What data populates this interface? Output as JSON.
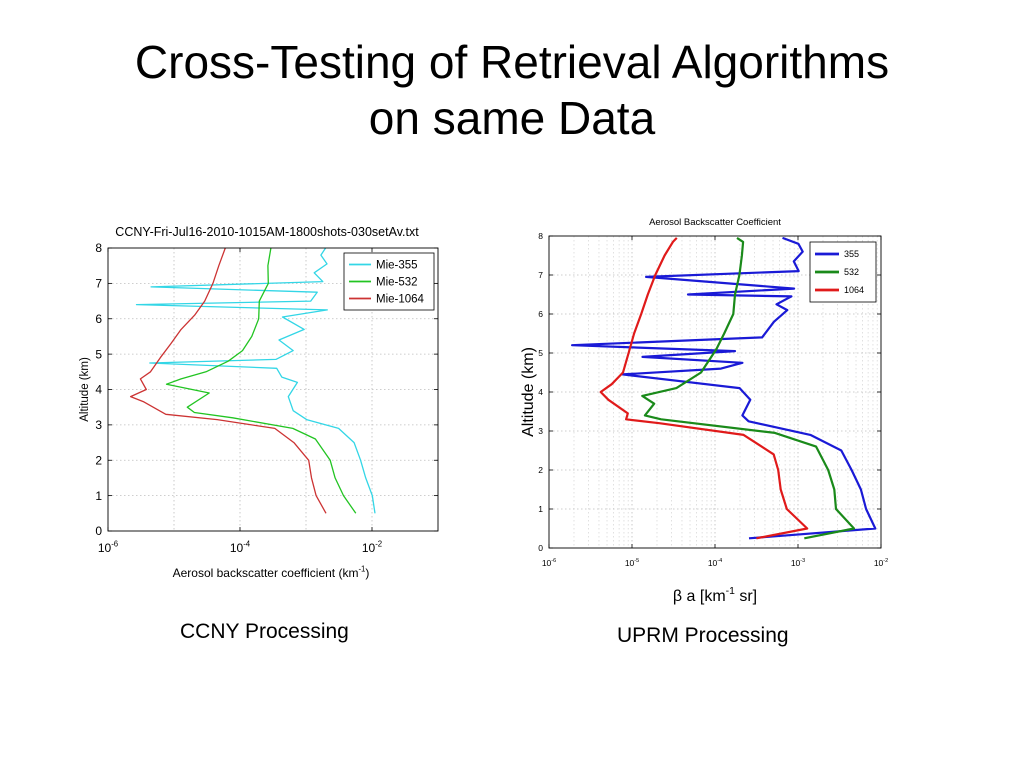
{
  "slide": {
    "title_line1": "Cross-Testing of Retrieval Algorithms",
    "title_line2": "on same  Data"
  },
  "captions": {
    "left": "CCNY Processing",
    "right": "UPRM Processing"
  },
  "chart_data": [
    {
      "id": "ccny",
      "type": "line",
      "title": "CCNY-Fri-Jul16-2010-1015AM-1800shots-030setAv.txt",
      "xlabel": "Aerosol backscatter coefficient (km⁻¹)",
      "ylabel": "Altitude (km)",
      "xscale": "log",
      "xlim": [
        1e-06,
        0.1
      ],
      "ylim": [
        0,
        8
      ],
      "xticks": [
        {
          "value": 1e-06,
          "base": "10",
          "exp": "-6"
        },
        {
          "value": 0.0001,
          "base": "10",
          "exp": "-4"
        },
        {
          "value": 0.01,
          "base": "10",
          "exp": "-2"
        }
      ],
      "yticks": [
        0,
        1,
        2,
        3,
        4,
        5,
        6,
        7,
        8
      ],
      "grid": true,
      "legend": "top-right",
      "series": [
        {
          "name": "Mie-355",
          "color": "#33d6e6",
          "points": [
            [
              0.0111,
              0.5
            ],
            [
              0.0101,
              1
            ],
            [
              0.00803,
              1.5
            ],
            [
              0.00673,
              2
            ],
            [
              0.00536,
              2.5
            ],
            [
              0.00312,
              2.9
            ],
            [
              0.00102,
              3.15
            ],
            [
              0.00064,
              3.4
            ],
            [
              0.00054,
              3.8
            ],
            [
              0.00074,
              4.2
            ],
            [
              0.00043,
              4.35
            ],
            [
              0.00036,
              4.6
            ],
            [
              4.3e-06,
              4.75
            ],
            [
              0.00035,
              4.85
            ],
            [
              0.00064,
              5.1
            ],
            [
              0.00039,
              5.4
            ],
            [
              0.00094,
              5.7
            ],
            [
              0.00044,
              6.05
            ],
            [
              0.0021,
              6.25
            ],
            [
              2.7e-06,
              6.4
            ],
            [
              0.00118,
              6.5
            ],
            [
              0.00148,
              6.75
            ],
            [
              4.5e-06,
              6.9
            ],
            [
              0.0018,
              7.05
            ],
            [
              0.00133,
              7.3
            ],
            [
              0.00208,
              7.55
            ],
            [
              0.00168,
              7.8
            ],
            [
              0.00198,
              8
            ]
          ]
        },
        {
          "name": "Mie-532",
          "color": "#22c422",
          "points": [
            [
              0.00569,
              0.5
            ],
            [
              0.0037,
              1
            ],
            [
              0.00276,
              1.5
            ],
            [
              0.00233,
              2
            ],
            [
              0.00139,
              2.6
            ],
            [
              0.00063,
              2.9
            ],
            [
              7.76e-05,
              3.2
            ],
            [
              2.04e-05,
              3.35
            ],
            [
              1.59e-05,
              3.5
            ],
            [
              3.42e-05,
              3.9
            ],
            [
              7.7e-06,
              4.15
            ],
            [
              1.28e-05,
              4.3
            ],
            [
              3.05e-05,
              4.5
            ],
            [
              6.63e-05,
              4.8
            ],
            [
              0.000109,
              5.1
            ],
            [
              0.000151,
              5.5
            ],
            [
              0.000192,
              6
            ],
            [
              0.000196,
              6.5
            ],
            [
              0.000268,
              7
            ],
            [
              0.000265,
              7.5
            ],
            [
              0.000294,
              8
            ]
          ]
        },
        {
          "name": "Mie-1064",
          "color": "#cc3333",
          "points": [
            [
              0.00201,
              0.5
            ],
            [
              0.00142,
              1
            ],
            [
              0.00121,
              1.5
            ],
            [
              0.0011,
              2
            ],
            [
              0.000656,
              2.5
            ],
            [
              0.000337,
              2.9
            ],
            [
              4.52e-05,
              3.15
            ],
            [
              7.5e-06,
              3.3
            ],
            [
              3.5e-06,
              3.65
            ],
            [
              2.2e-06,
              3.8
            ],
            [
              3.8e-06,
              4
            ],
            [
              3.1e-06,
              4.3
            ],
            [
              4.4e-06,
              4.5
            ],
            [
              6.2e-06,
              4.9
            ],
            [
              9e-06,
              5.3
            ],
            [
              1.28e-05,
              5.7
            ],
            [
              2.05e-05,
              6.1
            ],
            [
              2.92e-05,
              6.5
            ],
            [
              3.88e-05,
              7
            ],
            [
              4.78e-05,
              7.5
            ],
            [
              5.99e-05,
              8
            ]
          ]
        }
      ]
    },
    {
      "id": "uprm",
      "type": "line",
      "title": "Aerosol Backscatter Coefficient",
      "xlabel": "β a [km⁻¹ sr]",
      "ylabel": "Altitude (km)",
      "xscale": "log",
      "xlim": [
        1e-06,
        0.01
      ],
      "ylim": [
        0,
        8
      ],
      "xticks": [
        {
          "value": 1e-06,
          "base": "10",
          "exp": "-6"
        },
        {
          "value": 1e-05,
          "base": "10",
          "exp": "-5"
        },
        {
          "value": 0.0001,
          "base": "10",
          "exp": "-4"
        },
        {
          "value": 0.001,
          "base": "10",
          "exp": "-3"
        },
        {
          "value": 0.01,
          "base": "10",
          "exp": "-2"
        }
      ],
      "yticks": [
        0,
        1,
        2,
        3,
        4,
        5,
        6,
        7,
        8
      ],
      "grid": true,
      "legend": "top-right",
      "series": [
        {
          "name": "355",
          "color": "#1a1ad6",
          "points": [
            [
              0.000257,
              0.25
            ],
            [
              0.00853,
              0.5
            ],
            [
              0.00661,
              1
            ],
            [
              0.00572,
              1.5
            ],
            [
              0.00442,
              2
            ],
            [
              0.00332,
              2.5
            ],
            [
              0.00141,
              2.9
            ],
            [
              0.000254,
              3.25
            ],
            [
              0.000214,
              3.4
            ],
            [
              0.000266,
              3.8
            ],
            [
              0.000198,
              4.1
            ],
            [
              7.7e-06,
              4.45
            ],
            [
              0.000118,
              4.6
            ],
            [
              0.000214,
              4.75
            ],
            [
              1.34e-05,
              4.9
            ],
            [
              0.000174,
              5.05
            ],
            [
              1.9e-06,
              5.2
            ],
            [
              0.000369,
              5.4
            ],
            [
              0.000513,
              5.8
            ],
            [
              0.000743,
              6.1
            ],
            [
              0.000551,
              6.25
            ],
            [
              0.000832,
              6.45
            ],
            [
              4.73e-05,
              6.5
            ],
            [
              0.000897,
              6.65
            ],
            [
              1.48e-05,
              6.95
            ],
            [
              0.00102,
              7.1
            ],
            [
              0.00089,
              7.35
            ],
            [
              0.00114,
              7.6
            ],
            [
              0.00101,
              7.8
            ],
            [
              0.000651,
              7.95
            ]
          ]
        },
        {
          "name": "532",
          "color": "#1a8a1a",
          "points": [
            [
              0.00119,
              0.25
            ],
            [
              0.00473,
              0.5
            ],
            [
              0.00287,
              1
            ],
            [
              0.00274,
              1.5
            ],
            [
              0.00231,
              2
            ],
            [
              0.00165,
              2.6
            ],
            [
              0.000527,
              2.95
            ],
            [
              2.24e-05,
              3.3
            ],
            [
              1.43e-05,
              3.4
            ],
            [
              1.85e-05,
              3.7
            ],
            [
              1.33e-05,
              3.9
            ],
            [
              3.43e-05,
              4.1
            ],
            [
              6.79e-05,
              4.5
            ],
            [
              0.000104,
              5.1
            ],
            [
              0.000129,
              5.5
            ],
            [
              0.000166,
              6
            ],
            [
              0.000174,
              6.5
            ],
            [
              0.000197,
              7
            ],
            [
              0.000211,
              7.5
            ],
            [
              0.000218,
              7.85
            ],
            [
              0.000184,
              7.95
            ]
          ]
        },
        {
          "name": "1064",
          "color": "#e01a1a",
          "points": [
            [
              0.000315,
              0.25
            ],
            [
              0.00129,
              0.5
            ],
            [
              0.000733,
              1
            ],
            [
              0.000619,
              1.5
            ],
            [
              0.000578,
              2
            ],
            [
              0.00051,
              2.4
            ],
            [
              0.000221,
              2.9
            ],
            [
              2.13e-05,
              3.2
            ],
            [
              8.5e-06,
              3.3
            ],
            [
              8.9e-06,
              3.45
            ],
            [
              5.2e-06,
              3.8
            ],
            [
              4.2e-06,
              4
            ],
            [
              5.7e-06,
              4.2
            ],
            [
              7.8e-06,
              4.5
            ],
            [
              9.1e-06,
              5
            ],
            [
              1.06e-05,
              5.5
            ],
            [
              1.29e-05,
              6
            ],
            [
              1.55e-05,
              6.5
            ],
            [
              1.91e-05,
              7
            ],
            [
              2.47e-05,
              7.5
            ],
            [
              3.11e-05,
              7.85
            ],
            [
              3.47e-05,
              7.95
            ]
          ]
        }
      ]
    }
  ]
}
